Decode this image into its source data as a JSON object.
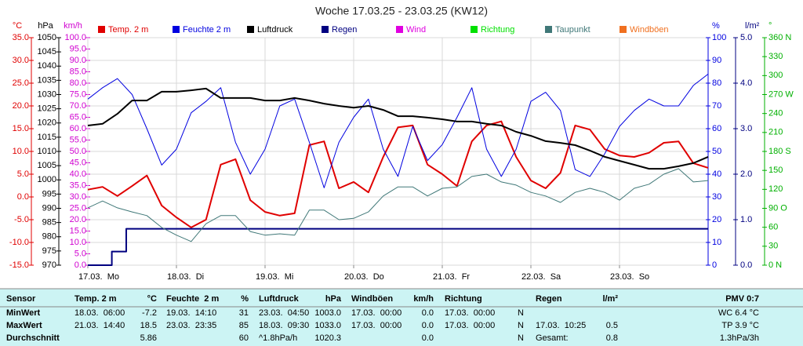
{
  "chart_data": {
    "type": "line",
    "title": "Woche 17.03.25 - 23.03.25 (KW12)",
    "grid": true,
    "xlim": [
      0,
      168
    ],
    "xticks": [
      {
        "value": 0,
        "label": "17.03.  Mo"
      },
      {
        "value": 24,
        "label": "18.03.  Di"
      },
      {
        "value": 48,
        "label": "19.03.  Mi"
      },
      {
        "value": 72,
        "label": "20.03.  Do"
      },
      {
        "value": 96,
        "label": "21.03.  Fr"
      },
      {
        "value": 120,
        "label": "22.03.  Sa"
      },
      {
        "value": 144,
        "label": "23.03.  So"
      }
    ],
    "axes": [
      {
        "label": "°C",
        "color": "#e00000",
        "side": "left",
        "lim": [
          -15,
          35
        ],
        "ticks": [
          {
            "value": -15,
            "label": "-15.0"
          },
          {
            "value": -10,
            "label": "-10.0"
          },
          {
            "value": -5,
            "label": "-5.0"
          },
          {
            "value": 0,
            "label": "0.0"
          },
          {
            "value": 5,
            "label": "5.0"
          },
          {
            "value": 10,
            "label": "10.0"
          },
          {
            "value": 15,
            "label": "15.0"
          },
          {
            "value": 20,
            "label": "20.0"
          },
          {
            "value": 25,
            "label": "25.0"
          },
          {
            "value": 30,
            "label": "30.0"
          },
          {
            "value": 35,
            "label": "35.0"
          }
        ]
      },
      {
        "label": "hPa",
        "color": "#000000",
        "side": "left",
        "lim": [
          970,
          1050
        ],
        "ticks": [
          970,
          975,
          980,
          985,
          990,
          995,
          1000,
          1005,
          1010,
          1015,
          1020,
          1025,
          1030,
          1035,
          1040,
          1045,
          1050
        ]
      },
      {
        "label": "km/h",
        "color": "#d000d0",
        "side": "left",
        "lim": [
          0,
          100
        ],
        "ticks": [
          {
            "value": 0,
            "label": "0.0"
          },
          {
            "value": 5,
            "label": "5.0"
          },
          {
            "value": 10,
            "label": "10.0"
          },
          {
            "value": 15,
            "label": "15.0"
          },
          {
            "value": 20,
            "label": "20.0"
          },
          {
            "value": 25,
            "label": "25.0"
          },
          {
            "value": 30,
            "label": "30.0"
          },
          {
            "value": 35,
            "label": "35.0"
          },
          {
            "value": 40,
            "label": "40.0"
          },
          {
            "value": 45,
            "label": "45.0"
          },
          {
            "value": 50,
            "label": "50.0"
          },
          {
            "value": 55,
            "label": "55.0"
          },
          {
            "value": 60,
            "label": "60.0"
          },
          {
            "value": 65,
            "label": "65.0"
          },
          {
            "value": 70,
            "label": "70.0"
          },
          {
            "value": 75,
            "label": "75.0"
          },
          {
            "value": 80,
            "label": "80.0"
          },
          {
            "value": 85,
            "label": "85.0"
          },
          {
            "value": 90,
            "label": "90.0"
          },
          {
            "value": 95,
            "label": "95.0"
          },
          {
            "value": 100,
            "label": "100.0"
          }
        ]
      },
      {
        "label": "%",
        "color": "#0000e0",
        "side": "right",
        "lim": [
          0,
          100
        ],
        "ticks": [
          0,
          10,
          20,
          30,
          40,
          50,
          60,
          70,
          80,
          90,
          100
        ]
      },
      {
        "label": "l/m²",
        "color": "#000080",
        "side": "right",
        "lim": [
          0,
          5
        ],
        "ticks": [
          {
            "value": 0,
            "label": "0.0"
          },
          {
            "value": 1,
            "label": "1.0"
          },
          {
            "value": 2,
            "label": "2.0"
          },
          {
            "value": 3,
            "label": "3.0"
          },
          {
            "value": 4,
            "label": "4.0"
          },
          {
            "value": 5,
            "label": "5.0"
          }
        ]
      },
      {
        "label": "°",
        "color": "#00b000",
        "side": "right",
        "lim": [
          0,
          360
        ],
        "ticks": [
          {
            "value": 0,
            "label": "0 N"
          },
          {
            "value": 30,
            "label": "30"
          },
          {
            "value": 60,
            "label": "60"
          },
          {
            "value": 90,
            "label": "90 O"
          },
          {
            "value": 120,
            "label": "120"
          },
          {
            "value": 150,
            "label": "150"
          },
          {
            "value": 180,
            "label": "180 S"
          },
          {
            "value": 210,
            "label": "210"
          },
          {
            "value": 240,
            "label": "240"
          },
          {
            "value": 270,
            "label": "270 W"
          },
          {
            "value": 300,
            "label": "300"
          },
          {
            "value": 330,
            "label": "330"
          },
          {
            "value": 360,
            "label": "360 N"
          }
        ]
      }
    ],
    "x": [
      0,
      4,
      8,
      12,
      16,
      20,
      24,
      28,
      32,
      36,
      40,
      44,
      48,
      52,
      56,
      60,
      64,
      68,
      72,
      76,
      80,
      84,
      88,
      92,
      96,
      100,
      104,
      108,
      112,
      116,
      120,
      124,
      128,
      132,
      136,
      140,
      144,
      148,
      152,
      156,
      160,
      164,
      168
    ],
    "series": [
      {
        "name": "Temp. 2 m",
        "color": "#e00000",
        "axis": 0,
        "width": 2,
        "values": [
          1.6,
          2.2,
          0.2,
          2.4,
          4.7,
          -1.9,
          -4.5,
          -6.7,
          -5,
          7.1,
          8.3,
          -0.7,
          -3.3,
          -4.1,
          -3.6,
          11.4,
          12.2,
          1.9,
          3.3,
          1,
          8.8,
          15.3,
          15.7,
          7.1,
          5,
          2.4,
          12.2,
          15.7,
          16.6,
          8.8,
          3.6,
          1.9,
          5.3,
          15.7,
          14.8,
          10.5,
          9.1,
          8.8,
          9.7,
          11.9,
          12.2,
          7.4,
          6.4
        ]
      },
      {
        "name": "Feuchte 2 m",
        "color": "#0000e0",
        "axis": 3,
        "width": 1,
        "values": [
          73,
          78,
          82,
          75,
          60,
          44,
          51,
          67,
          72,
          78,
          54,
          40,
          51,
          70,
          73,
          54,
          34,
          54,
          65,
          73,
          51,
          39,
          61,
          46,
          53,
          65,
          78,
          51,
          39,
          51,
          72,
          76,
          68,
          42,
          39,
          49,
          61,
          68,
          73,
          70,
          70,
          79,
          84
        ]
      },
      {
        "name": "Luftdruck",
        "color": "#000000",
        "axis": 1,
        "width": 2,
        "values": [
          1019.1,
          1019.7,
          1023.2,
          1027.9,
          1027.9,
          1031,
          1031,
          1031.5,
          1032.1,
          1028.8,
          1028.8,
          1028.8,
          1027.9,
          1027.9,
          1028.8,
          1027.9,
          1026.8,
          1026,
          1025.4,
          1026,
          1024.6,
          1022.4,
          1022.4,
          1021.9,
          1021.3,
          1020.5,
          1020.5,
          1019.7,
          1019.1,
          1016.9,
          1015.5,
          1013.6,
          1013,
          1012.2,
          1010.3,
          1008.1,
          1006.7,
          1005.3,
          1003.9,
          1003.9,
          1004.8,
          1005.9,
          1008.1
        ]
      },
      {
        "name": "Regen",
        "color": "#000080",
        "axis": 4,
        "width": 2,
        "x": [
          0,
          6.5,
          6.5,
          10.4,
          10.4,
          168
        ],
        "values": [
          0,
          0,
          0.3,
          0.3,
          0.8,
          0.8
        ]
      },
      {
        "name": "Wind",
        "color": "#e000e0"
      },
      {
        "name": "Richtung",
        "color": "#00e000"
      },
      {
        "name": "Taupunkt",
        "color": "#407878",
        "axis": 0,
        "width": 1,
        "values": [
          -2.4,
          -0.9,
          -2.4,
          -3.3,
          -4.1,
          -6.7,
          -8.4,
          -9.8,
          -5.9,
          -4.1,
          -4.1,
          -7.6,
          -8.4,
          -8.1,
          -8.4,
          -2.9,
          -2.9,
          -5,
          -4.7,
          -3.3,
          0.2,
          2.2,
          2.2,
          0.2,
          1.9,
          2.2,
          4.5,
          5,
          3.3,
          2.6,
          1,
          0.2,
          -1.2,
          1,
          1.9,
          1,
          -0.7,
          1.9,
          2.8,
          5,
          6.2,
          3.3,
          3.6
        ]
      },
      {
        "name": "Windböen",
        "color": "#f07020"
      }
    ]
  },
  "table": {
    "header": [
      "Sensor",
      "Temp. 2 m",
      "°C",
      "Feuchte  2 m",
      "%",
      "Luftdruck",
      "hPa",
      "Windböen",
      "km/h",
      "Richtung",
      null,
      "Regen",
      "l/m²",
      "PMV 0:7"
    ],
    "rows": [
      [
        "MinWert",
        "18.03.  06:00",
        "-7.2",
        "19.03.  14:10",
        "31",
        "23.03.  04:50",
        "1003.0",
        "17.03.  00:00",
        "0.0",
        "17.03.  00:00",
        "N",
        null,
        null,
        "WC 6.4 °C"
      ],
      [
        "MaxWert",
        "21.03.  14:40",
        "18.5",
        "23.03.  23:35",
        "85",
        "18.03.  09:30",
        "1033.0",
        "17.03.  00:00",
        "0.0",
        "17.03.  00:00",
        "N",
        "17.03.  10:25",
        "0.5",
        "TP 3.9 °C"
      ],
      [
        "Durchschnitt",
        null,
        "5.86",
        null,
        "60",
        "^1.8hPa/h",
        "1020.3",
        null,
        "0.0",
        null,
        "N",
        "Gesamt:",
        "0.8",
        "1.3hPa/3h"
      ]
    ]
  }
}
